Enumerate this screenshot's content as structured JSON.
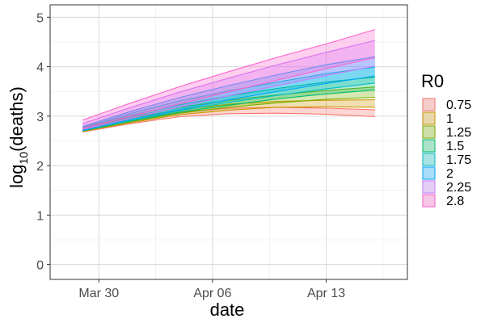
{
  "chart_data": {
    "type": "area",
    "xlabel": "date",
    "ylabel": "log10(deaths)",
    "ylim": [
      -0.3,
      5.25
    ],
    "xlim": [
      "2020-03-27",
      "2020-04-18"
    ],
    "x_ticks": [
      {
        "date": "2020-03-30",
        "label": "Mar 30"
      },
      {
        "date": "2020-04-06",
        "label": "Apr 06"
      },
      {
        "date": "2020-04-13",
        "label": "Apr 13"
      }
    ],
    "y_ticks": [
      0,
      1,
      2,
      3,
      4,
      5
    ],
    "grid": true,
    "legend_title": "R0",
    "legend_position": "right",
    "x": [
      "2020-03-29",
      "2020-04-01",
      "2020-04-04",
      "2020-04-07",
      "2020-04-10",
      "2020-04-13",
      "2020-04-16"
    ],
    "series": [
      {
        "name": "0.75",
        "color": "#F8766D",
        "lower": [
          2.68,
          2.85,
          2.99,
          3.05,
          3.06,
          3.04,
          2.99
        ],
        "upper": [
          2.73,
          2.93,
          3.08,
          3.16,
          3.18,
          3.16,
          3.13
        ]
      },
      {
        "name": "1",
        "color": "#CD9600",
        "lower": [
          2.69,
          2.87,
          3.03,
          3.12,
          3.18,
          3.19,
          3.18
        ],
        "upper": [
          2.74,
          2.96,
          3.13,
          3.24,
          3.3,
          3.32,
          3.33
        ]
      },
      {
        "name": "1.25",
        "color": "#7CAE00",
        "lower": [
          2.7,
          2.89,
          3.06,
          3.18,
          3.27,
          3.34,
          3.38
        ],
        "upper": [
          2.75,
          2.99,
          3.18,
          3.32,
          3.43,
          3.52,
          3.59
        ]
      },
      {
        "name": "1.5",
        "color": "#00BE67",
        "lower": [
          2.7,
          2.9,
          3.08,
          3.22,
          3.35,
          3.45,
          3.53
        ],
        "upper": [
          2.76,
          3.02,
          3.23,
          3.41,
          3.56,
          3.69,
          3.79
        ]
      },
      {
        "name": "1.75",
        "color": "#00BFC4",
        "lower": [
          2.71,
          2.92,
          3.11,
          3.28,
          3.42,
          3.55,
          3.67
        ],
        "upper": [
          2.77,
          3.06,
          3.31,
          3.51,
          3.69,
          3.86,
          3.99
        ]
      },
      {
        "name": "2",
        "color": "#00A9FF",
        "lower": [
          2.71,
          2.93,
          3.13,
          3.33,
          3.5,
          3.66,
          3.81
        ],
        "upper": [
          2.79,
          3.1,
          3.38,
          3.62,
          3.84,
          4.04,
          4.2
        ]
      },
      {
        "name": "2.25",
        "color": "#C77CFF",
        "lower": [
          2.73,
          2.96,
          3.19,
          3.41,
          3.62,
          3.82,
          4.01
        ],
        "upper": [
          2.85,
          3.18,
          3.49,
          3.77,
          4.04,
          4.29,
          4.53
        ]
      },
      {
        "name": "2.8",
        "color": "#FF61CC",
        "lower": [
          2.75,
          3.0,
          3.25,
          3.49,
          3.73,
          3.96,
          4.18
        ],
        "upper": [
          2.92,
          3.27,
          3.6,
          3.9,
          4.19,
          4.46,
          4.75
        ]
      }
    ]
  }
}
